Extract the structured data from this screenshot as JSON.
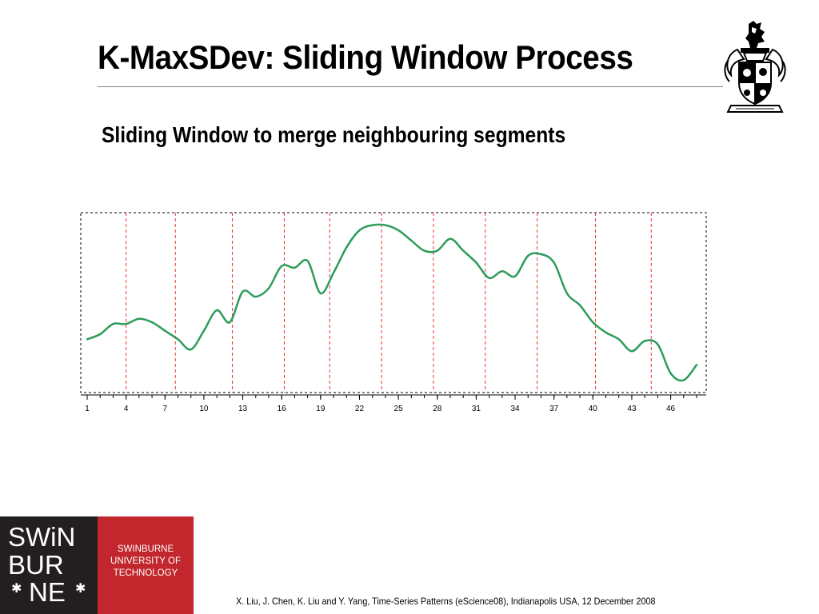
{
  "slide": {
    "title": "K-MaxSDev: Sliding Window Process",
    "subtitle": "Sliding Window to merge neighbouring segments",
    "footer": "X. Liu, J. Chen, K. Liu and Y. Yang, Time-Series Patterns (eScience08), Indianapolis USA, 12 December 2008"
  },
  "logo": {
    "lines": [
      "SWiN",
      "BUR",
      "NE"
    ],
    "university": [
      "SWINBURNE",
      "UNIVERSITY OF",
      "TECHNOLOGY"
    ],
    "crest_icon": "coat-of-arms-icon"
  },
  "chart_data": {
    "type": "line",
    "x_tick_labels": [
      "1",
      "4",
      "7",
      "10",
      "13",
      "16",
      "19",
      "22",
      "25",
      "28",
      "31",
      "34",
      "37",
      "40",
      "43",
      "46"
    ],
    "x_tick_values": [
      1,
      4,
      7,
      10,
      13,
      16,
      19,
      22,
      25,
      28,
      31,
      34,
      37,
      40,
      43,
      46
    ],
    "xlim": [
      1,
      48
    ],
    "ylim": [
      0,
      100
    ],
    "grid": false,
    "series": [
      {
        "color": "#2e9c5a",
        "x": [
          1,
          2,
          3,
          4,
          5,
          6,
          7,
          8,
          9,
          10,
          11,
          12,
          13,
          14,
          15,
          16,
          17,
          18,
          19,
          20,
          21,
          22,
          23,
          24,
          25,
          26,
          27,
          28,
          29,
          30,
          31,
          32,
          33,
          34,
          35,
          36,
          37,
          38,
          39,
          40,
          41,
          42,
          43,
          44,
          45,
          46,
          47,
          48
        ],
        "values": [
          28,
          31,
          37,
          37,
          40,
          38,
          33,
          28,
          22,
          33,
          45,
          38,
          56,
          53,
          58,
          71,
          70,
          74,
          55,
          67,
          82,
          92,
          95,
          95,
          92,
          86,
          80,
          80,
          87,
          80,
          73,
          64,
          68,
          65,
          77,
          78,
          73,
          55,
          48,
          38,
          32,
          28,
          21,
          27,
          25,
          8,
          4,
          13
        ]
      }
    ],
    "window_boundaries_x": [
      4,
      7.8,
      12.2,
      16.2,
      19.7,
      23.7,
      27.7,
      31.7,
      35.7,
      40.2,
      44.5
    ],
    "window_color": "#e8362f"
  }
}
